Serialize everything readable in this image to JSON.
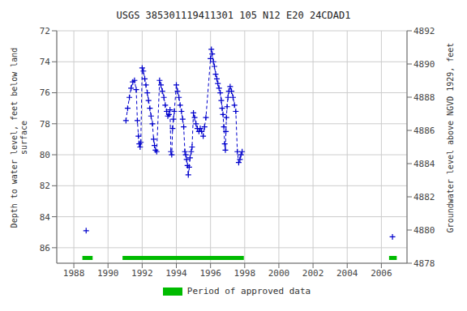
{
  "chart_data": {
    "type": "line",
    "title": "USGS 385301119411301 105  N12 E20 24CDAD1",
    "ylabel": "Depth to water level, feet below land\nsurface",
    "y2label": "Groundwater level above NGVD 1929, feet",
    "xlim": [
      1987,
      2007.5
    ],
    "xticks": [
      1988,
      1990,
      1992,
      1994,
      1996,
      1998,
      2000,
      2002,
      2004,
      2006
    ],
    "ylim": [
      87,
      72
    ],
    "yticks": [
      72,
      74,
      76,
      78,
      80,
      82,
      84,
      86
    ],
    "y2lim": [
      4878,
      4892
    ],
    "y2ticks": [
      4892,
      4890,
      4888,
      4886,
      4884,
      4882,
      4880,
      4878
    ],
    "grid": true,
    "legend": "bottom",
    "series": [
      {
        "color": "#0000cc",
        "marker": "plus",
        "line_style": "none",
        "x": [
          1988.72
        ],
        "values": [
          84.9
        ]
      },
      {
        "color": "#0000cc",
        "marker": "plus",
        "line_style": "dashed",
        "x": [
          1991.05,
          1991.15,
          1991.25,
          1991.35,
          1991.45,
          1991.55,
          1991.65,
          1991.72,
          1991.78,
          1991.83,
          1991.88,
          1991.92,
          1992.0,
          1992.07,
          1992.15,
          1992.22,
          1992.3,
          1992.37,
          1992.45,
          1992.52,
          1992.6,
          1992.67,
          1992.72,
          1992.78,
          1992.85,
          1993.02,
          1993.1,
          1993.18,
          1993.27,
          1993.35,
          1993.43,
          1993.5,
          1993.57,
          1993.63,
          1993.68,
          1993.73,
          1993.78,
          1993.83,
          1993.88,
          1994.0,
          1994.07,
          1994.15,
          1994.22,
          1994.3,
          1994.37,
          1994.43,
          1994.5,
          1994.55,
          1994.6,
          1994.65,
          1994.7,
          1994.75,
          1994.8,
          1994.87,
          1994.92,
          1995.0,
          1995.07,
          1995.15,
          1995.23,
          1995.32,
          1995.4,
          1995.48,
          1995.57,
          1995.65,
          1995.73,
          1996.0,
          1996.05,
          1996.1,
          1996.17,
          1996.23,
          1996.3,
          1996.37,
          1996.43,
          1996.5,
          1996.57,
          1996.63,
          1996.68,
          1996.73,
          1996.78,
          1996.83,
          1996.87,
          1996.9,
          1996.93,
          1996.97,
          1997.02,
          1997.07,
          1997.15,
          1997.23,
          1997.32,
          1997.4,
          1997.48,
          1997.57,
          1997.65,
          1997.72,
          1997.78,
          1997.85
        ],
        "values": [
          77.8,
          77.0,
          76.3,
          75.7,
          75.3,
          75.2,
          75.8,
          77.8,
          78.8,
          79.3,
          79.5,
          79.2,
          74.4,
          74.6,
          75.1,
          75.5,
          76.0,
          76.5,
          77.0,
          77.5,
          78.0,
          79.0,
          79.4,
          79.7,
          79.8,
          75.2,
          75.5,
          75.9,
          76.3,
          76.8,
          77.2,
          77.5,
          77.4,
          77.1,
          79.8,
          80.0,
          78.3,
          77.7,
          77.2,
          75.5,
          75.9,
          76.3,
          76.8,
          77.2,
          77.7,
          78.2,
          79.8,
          80.0,
          80.3,
          80.7,
          81.3,
          80.8,
          80.2,
          79.8,
          79.5,
          77.3,
          77.6,
          78.0,
          78.3,
          78.5,
          78.3,
          78.5,
          78.8,
          78.2,
          77.6,
          73.8,
          73.2,
          73.5,
          74.0,
          74.3,
          74.8,
          75.1,
          75.4,
          75.7,
          76.0,
          76.5,
          77.0,
          77.4,
          78.2,
          79.3,
          79.7,
          78.5,
          77.6,
          76.9,
          76.3,
          75.9,
          75.6,
          75.9,
          76.3,
          76.8,
          77.2,
          79.8,
          80.5,
          80.3,
          80.0,
          79.8
        ]
      },
      {
        "color": "#0000cc",
        "marker": "plus",
        "line_style": "none",
        "x": [
          2006.65
        ],
        "values": [
          85.3
        ]
      }
    ],
    "approved_periods": {
      "name": "Period of approved data",
      "color": "#00bb00",
      "periods": [
        [
          1988.5,
          1989.1
        ],
        [
          1990.85,
          1997.95
        ],
        [
          2006.45,
          2006.9
        ]
      ]
    }
  }
}
